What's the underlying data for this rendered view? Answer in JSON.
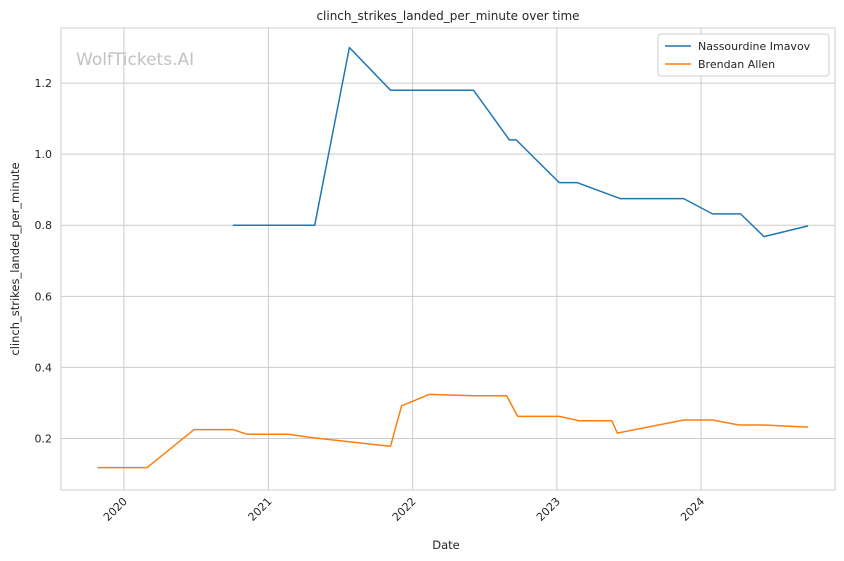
{
  "watermark": "WolfTickets.AI",
  "chart_data": {
    "type": "line",
    "title": "clinch_strikes_landed_per_minute over time",
    "xlabel": "Date",
    "ylabel": "clinch_strikes_landed_per_minute",
    "xlim": [
      "2019-07-26",
      "2024-12-05"
    ],
    "ylim": [
      0.055,
      1.355
    ],
    "x_ticks": [
      "2020-01-01",
      "2021-01-01",
      "2022-01-01",
      "2023-01-01",
      "2024-01-01"
    ],
    "x_tick_labels": [
      "2020",
      "2021",
      "2022",
      "2023",
      "2024"
    ],
    "y_ticks": [
      0.2,
      0.4,
      0.6,
      0.8,
      1.0,
      1.2
    ],
    "y_tick_labels": [
      "0.2",
      "0.4",
      "0.6",
      "0.8",
      "1.0",
      "1.2"
    ],
    "grid": true,
    "legend_position": "top-right",
    "series": [
      {
        "name": "Nassourdine Imavov",
        "color": "#1f77b4",
        "points": [
          {
            "x": "2020-10-03",
            "y": 0.8
          },
          {
            "x": "2021-04-28",
            "y": 0.8
          },
          {
            "x": "2021-07-25",
            "y": 1.3
          },
          {
            "x": "2021-11-06",
            "y": 1.18
          },
          {
            "x": "2022-06-04",
            "y": 1.18
          },
          {
            "x": "2022-09-03",
            "y": 1.04
          },
          {
            "x": "2022-09-20",
            "y": 1.04
          },
          {
            "x": "2023-01-07",
            "y": 0.92
          },
          {
            "x": "2023-02-21",
            "y": 0.92
          },
          {
            "x": "2023-06-10",
            "y": 0.875
          },
          {
            "x": "2023-11-18",
            "y": 0.875
          },
          {
            "x": "2024-01-30",
            "y": 0.832
          },
          {
            "x": "2024-04-10",
            "y": 0.832
          },
          {
            "x": "2024-06-08",
            "y": 0.768
          },
          {
            "x": "2024-09-28",
            "y": 0.798
          }
        ]
      },
      {
        "name": "Brendan Allen",
        "color": "#ff7f0e",
        "points": [
          {
            "x": "2019-10-26",
            "y": 0.118
          },
          {
            "x": "2020-02-29",
            "y": 0.118
          },
          {
            "x": "2020-06-27",
            "y": 0.225
          },
          {
            "x": "2020-10-03",
            "y": 0.225
          },
          {
            "x": "2020-11-07",
            "y": 0.212
          },
          {
            "x": "2021-02-20",
            "y": 0.212
          },
          {
            "x": "2021-04-24",
            "y": 0.202
          },
          {
            "x": "2021-11-06",
            "y": 0.178
          },
          {
            "x": "2021-12-04",
            "y": 0.292
          },
          {
            "x": "2022-02-12",
            "y": 0.324
          },
          {
            "x": "2022-06-04",
            "y": 0.32
          },
          {
            "x": "2022-08-27",
            "y": 0.32
          },
          {
            "x": "2022-09-24",
            "y": 0.262
          },
          {
            "x": "2023-01-07",
            "y": 0.262
          },
          {
            "x": "2023-02-25",
            "y": 0.25
          },
          {
            "x": "2023-05-20",
            "y": 0.25
          },
          {
            "x": "2023-06-03",
            "y": 0.215
          },
          {
            "x": "2023-11-18",
            "y": 0.252
          },
          {
            "x": "2024-01-30",
            "y": 0.252
          },
          {
            "x": "2024-04-06",
            "y": 0.238
          },
          {
            "x": "2024-06-08",
            "y": 0.238
          },
          {
            "x": "2024-09-28",
            "y": 0.232
          }
        ]
      }
    ]
  }
}
